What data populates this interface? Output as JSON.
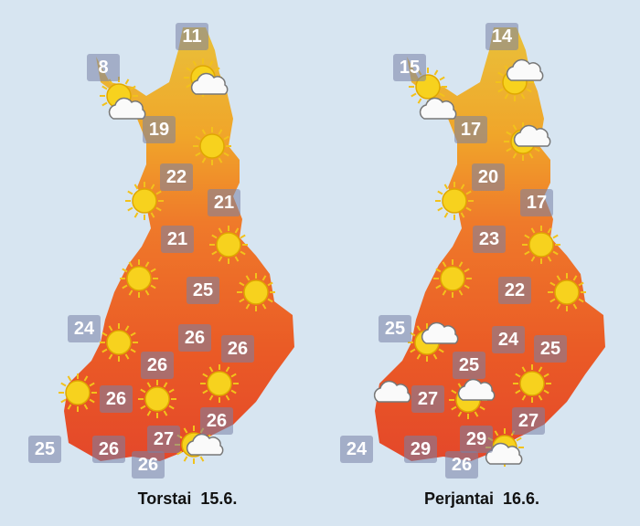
{
  "maps": [
    {
      "caption": "Torstai  15.6.",
      "temperatures": [
        11,
        8,
        19,
        22,
        21,
        21,
        25,
        24,
        26,
        26,
        26,
        26,
        26,
        27,
        25,
        26,
        26
      ]
    },
    {
      "caption": "Perjantai  16.6.",
      "temperatures": [
        14,
        15,
        17,
        20,
        17,
        23,
        22,
        25,
        24,
        25,
        25,
        27,
        27,
        29,
        24,
        29,
        26
      ]
    }
  ]
}
